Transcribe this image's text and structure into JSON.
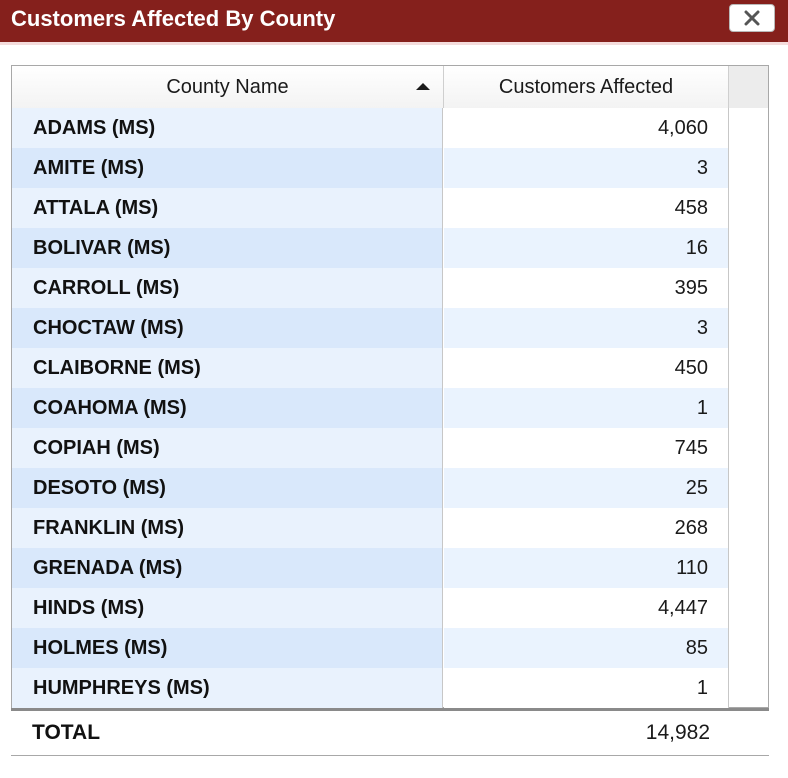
{
  "dialog": {
    "title": "Customers Affected By County",
    "close_label": "close"
  },
  "table": {
    "columns": [
      "County Name",
      "Customers Affected"
    ],
    "sort": {
      "column": "County Name",
      "direction": "ascending"
    },
    "rows": [
      {
        "county": "ADAMS (MS)",
        "customers": "4,060"
      },
      {
        "county": "AMITE (MS)",
        "customers": "3"
      },
      {
        "county": "ATTALA (MS)",
        "customers": "458"
      },
      {
        "county": "BOLIVAR (MS)",
        "customers": "16"
      },
      {
        "county": "CARROLL (MS)",
        "customers": "395"
      },
      {
        "county": "CHOCTAW (MS)",
        "customers": "3"
      },
      {
        "county": "CLAIBORNE (MS)",
        "customers": "450"
      },
      {
        "county": "COAHOMA (MS)",
        "customers": "1"
      },
      {
        "county": "COPIAH (MS)",
        "customers": "745"
      },
      {
        "county": "DESOTO (MS)",
        "customers": "25"
      },
      {
        "county": "FRANKLIN (MS)",
        "customers": "268"
      },
      {
        "county": "GRENADA (MS)",
        "customers": "110"
      },
      {
        "county": "HINDS (MS)",
        "customers": "4,447"
      },
      {
        "county": "HOLMES (MS)",
        "customers": "85"
      },
      {
        "county": "HUMPHREYS (MS)",
        "customers": "1"
      }
    ],
    "total": {
      "label": "TOTAL",
      "value": "14,982"
    }
  },
  "colors": {
    "titlebar": "#85201c",
    "row_name_light": "#e9f2fd",
    "row_name_dark": "#d9e8fb"
  },
  "icons": {
    "close": "x-icon",
    "sort": "sort-ascending-icon"
  }
}
